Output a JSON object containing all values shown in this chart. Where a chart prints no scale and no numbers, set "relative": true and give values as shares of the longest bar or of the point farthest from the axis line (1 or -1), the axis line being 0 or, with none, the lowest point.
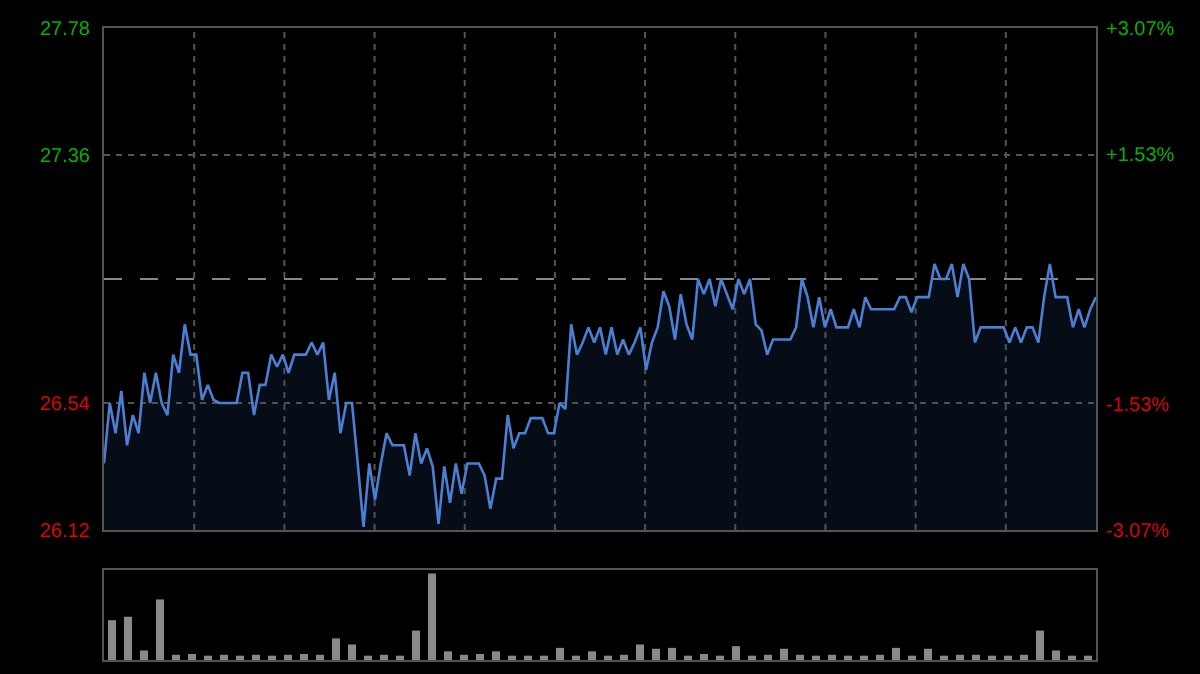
{
  "chart_data": [
    {
      "type": "area",
      "color": "#4a7fd4",
      "categories": [
        null,
        null,
        null,
        null,
        null,
        null,
        null,
        null,
        null,
        null,
        null,
        null,
        null,
        null,
        null,
        null,
        null,
        null,
        null,
        null,
        null,
        null,
        null,
        null,
        null,
        null,
        null,
        null,
        null,
        null,
        null,
        null,
        null,
        null,
        null,
        null,
        null,
        null,
        null,
        null,
        null,
        null,
        null,
        null,
        null,
        null,
        null,
        null,
        null,
        null,
        null,
        null,
        null,
        null,
        null,
        null,
        null,
        null,
        null,
        null,
        null,
        null,
        null,
        null,
        null,
        null,
        null,
        null,
        null,
        null,
        null,
        null,
        null,
        null,
        null,
        null,
        null,
        null,
        null,
        null,
        null,
        null,
        null,
        null,
        null,
        null,
        null,
        null,
        null,
        null,
        null,
        null,
        null,
        null,
        null,
        null,
        null,
        null,
        null,
        null,
        null,
        null,
        null,
        null,
        null,
        null,
        null,
        null,
        null,
        null,
        null,
        null,
        null,
        null,
        null,
        null,
        null,
        null,
        null,
        null,
        null,
        null,
        null,
        null,
        null,
        null,
        null,
        null,
        null,
        null,
        null,
        null,
        null,
        null,
        null,
        null,
        null,
        null,
        null,
        null,
        null,
        null,
        null,
        null,
        null,
        null,
        null,
        null,
        null,
        null,
        null,
        null,
        null,
        null,
        null,
        null,
        null,
        null,
        null,
        null,
        null,
        null,
        null,
        null,
        null,
        null,
        null,
        null,
        null,
        null,
        null,
        null,
        null
      ],
      "values": [
        26.34,
        26.54,
        26.44,
        26.58,
        26.4,
        26.5,
        26.44,
        26.64,
        26.54,
        26.64,
        26.54,
        26.5,
        26.7,
        26.64,
        26.8,
        26.7,
        26.7,
        26.55,
        26.6,
        26.55,
        26.54,
        26.54,
        26.54,
        26.54,
        26.64,
        26.64,
        26.5,
        26.6,
        26.6,
        26.7,
        26.66,
        26.7,
        26.64,
        26.7,
        26.7,
        26.7,
        26.74,
        26.7,
        26.74,
        26.55,
        26.64,
        26.44,
        26.54,
        26.54,
        26.34,
        26.13,
        26.34,
        26.22,
        26.34,
        26.44,
        26.4,
        26.4,
        26.4,
        26.3,
        26.44,
        26.34,
        26.39,
        26.33,
        26.14,
        26.33,
        26.21,
        26.34,
        26.24,
        26.34,
        26.34,
        26.34,
        26.3,
        26.19,
        26.29,
        26.29,
        26.5,
        26.39,
        26.44,
        26.44,
        26.49,
        26.49,
        26.49,
        26.44,
        26.44,
        26.54,
        26.52,
        26.8,
        26.7,
        26.74,
        26.79,
        26.74,
        26.79,
        26.7,
        26.79,
        26.7,
        26.75,
        26.7,
        26.74,
        26.79,
        26.65,
        26.74,
        26.79,
        26.91,
        26.86,
        26.75,
        26.9,
        26.8,
        26.75,
        26.95,
        26.9,
        26.95,
        26.86,
        26.95,
        26.9,
        26.85,
        26.95,
        26.9,
        26.95,
        26.8,
        26.78,
        26.7,
        26.75,
        26.75,
        26.75,
        26.75,
        26.79,
        26.95,
        26.89,
        26.79,
        26.89,
        26.79,
        26.85,
        26.79,
        26.79,
        26.79,
        26.85,
        26.79,
        26.89,
        26.85,
        26.85,
        26.85,
        26.85,
        26.85,
        26.89,
        26.89,
        26.84,
        26.89,
        26.89,
        26.89,
        27.0,
        26.95,
        26.95,
        27.0,
        26.89,
        27.0,
        26.95,
        26.74,
        26.79,
        26.79,
        26.79,
        26.79,
        26.79,
        26.74,
        26.79,
        26.74,
        26.79,
        26.79,
        26.74,
        26.89,
        27.0,
        26.89,
        26.89,
        26.89,
        26.79,
        26.85,
        26.79,
        26.85,
        26.89
      ],
      "ylim": [
        26.12,
        27.78
      ],
      "yticks": [
        26.12,
        26.54,
        27.36,
        27.78
      ],
      "y2lim": [
        -3.07,
        3.07
      ],
      "y2ticks": [
        {
          "value": -3.07,
          "label": "-3.07%"
        },
        {
          "value": -1.53,
          "label": "-1.53%"
        },
        {
          "value": 1.53,
          "label": "+1.53%"
        },
        {
          "value": 3.07,
          "label": "+3.07%"
        }
      ],
      "ref_lines": [
        {
          "axis": "y",
          "value": 26.95,
          "line_style": "dashed"
        }
      ],
      "grid": true
    },
    {
      "type": "bar",
      "color": "#8a8a8a",
      "relative": true,
      "categories": [
        null,
        null,
        null,
        null,
        null,
        null,
        null,
        null,
        null,
        null,
        null,
        null,
        null,
        null,
        null,
        null,
        null,
        null,
        null,
        null,
        null,
        null,
        null,
        null,
        null,
        null,
        null,
        null,
        null,
        null,
        null,
        null,
        null,
        null,
        null,
        null,
        null,
        null,
        null,
        null,
        null,
        null,
        null,
        null,
        null,
        null,
        null,
        null,
        null,
        null,
        null,
        null,
        null,
        null,
        null,
        null,
        null,
        null,
        null,
        null,
        null,
        null
      ],
      "values": [
        0.46,
        0.5,
        0.11,
        0.7,
        0.06,
        0.07,
        0.05,
        0.06,
        0.05,
        0.06,
        0.05,
        0.06,
        0.07,
        0.06,
        0.25,
        0.18,
        0.05,
        0.06,
        0.05,
        0.34,
        1,
        0.1,
        0.06,
        0.07,
        0.1,
        0.05,
        0.05,
        0.05,
        0.14,
        0.05,
        0.1,
        0.05,
        0.06,
        0.18,
        0.13,
        0.14,
        0.05,
        0.07,
        0.05,
        0.16,
        0.05,
        0.06,
        0.13,
        0.06,
        0.05,
        0.06,
        0.05,
        0.05,
        0.06,
        0.14,
        0.05,
        0.13,
        0.05,
        0.06,
        0.06,
        0.05,
        0.05,
        0.06,
        0.34,
        0.11,
        0.05,
        0.05
      ]
    }
  ]
}
